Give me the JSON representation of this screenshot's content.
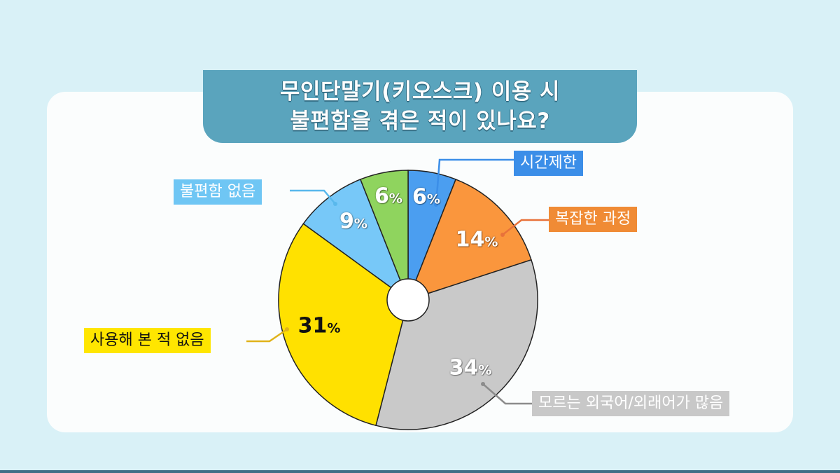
{
  "title": {
    "line1": "무인단말기(키오스크) 이용 시",
    "line2": "불편함을 겪은 적이 있나요?"
  },
  "chart_data": {
    "type": "pie",
    "title": "무인단말기(키오스크) 이용 시 불편함을 겪은 적이 있나요?",
    "slices": [
      {
        "label": "시간제한",
        "value": 6,
        "pct_text": "6",
        "color": "#4b9ef0"
      },
      {
        "label": "복잡한 과정",
        "value": 14,
        "pct_text": "14",
        "color": "#fa963d"
      },
      {
        "label": "모르는 외국어/외래어가 많음",
        "value": 34,
        "pct_text": "34",
        "color": "#c9c9c9"
      },
      {
        "label": "사용해 본 적 없음",
        "value": 31,
        "pct_text": "31",
        "color": "#ffe100"
      },
      {
        "label": "불편함 없음",
        "value": 9,
        "pct_text": "9",
        "color": "#77c8f8"
      },
      {
        "label": "",
        "value": 6,
        "pct_text": "6",
        "color": "#8fd45e"
      }
    ],
    "percent_symbol": "%",
    "start_angle_deg": 0,
    "direction": "clockwise"
  }
}
